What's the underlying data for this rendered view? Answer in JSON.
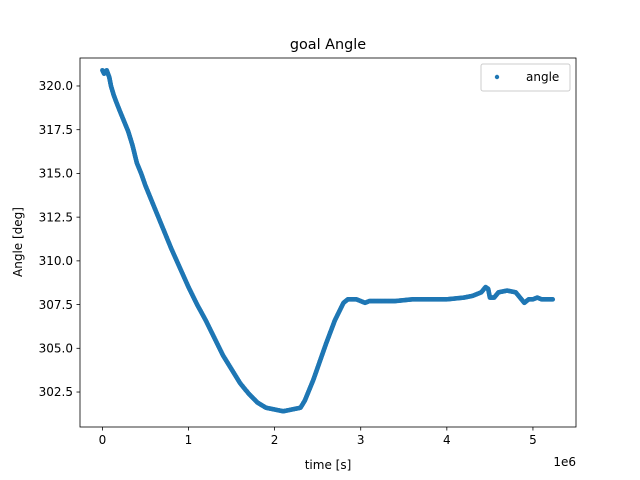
{
  "chart_data": {
    "type": "scatter",
    "title": "goal Angle",
    "xlabel": "time [s]",
    "ylabel": "Angle [deg]",
    "x_offset_text": "1e6",
    "xlim": [
      -0.26,
      5.5
    ],
    "ylim": [
      300.5,
      321.6
    ],
    "x_ticks": [
      0,
      1,
      2,
      3,
      4,
      5
    ],
    "x_tick_labels": [
      "0",
      "1",
      "2",
      "3",
      "4",
      "5"
    ],
    "y_ticks": [
      302.5,
      305.0,
      307.5,
      310.0,
      312.5,
      315.0,
      317.5,
      320.0
    ],
    "y_tick_labels": [
      "302.5",
      "305.0",
      "307.5",
      "310.0",
      "312.5",
      "315.0",
      "317.5",
      "320.0"
    ],
    "grid": false,
    "legend": {
      "position": "top-right",
      "entries": [
        "angle"
      ]
    },
    "series": [
      {
        "name": "angle",
        "color": "#1f77b4",
        "x": [
          0.0,
          0.02,
          0.05,
          0.08,
          0.1,
          0.13,
          0.16,
          0.2,
          0.25,
          0.3,
          0.35,
          0.4,
          0.45,
          0.5,
          0.55,
          0.6,
          0.7,
          0.8,
          0.9,
          1.0,
          1.1,
          1.2,
          1.3,
          1.4,
          1.5,
          1.6,
          1.7,
          1.8,
          1.9,
          2.0,
          2.1,
          2.2,
          2.3,
          2.35,
          2.4,
          2.45,
          2.5,
          2.55,
          2.6,
          2.7,
          2.8,
          2.85,
          2.9,
          2.95,
          3.0,
          3.05,
          3.1,
          3.2,
          3.4,
          3.6,
          3.8,
          4.0,
          4.2,
          4.3,
          4.4,
          4.45,
          4.48,
          4.5,
          4.55,
          4.6,
          4.7,
          4.8,
          4.85,
          4.9,
          4.95,
          5.0,
          5.05,
          5.1,
          5.15,
          5.2,
          5.23
        ],
        "y": [
          320.9,
          320.7,
          320.9,
          320.5,
          320.0,
          319.5,
          319.1,
          318.6,
          318.0,
          317.4,
          316.6,
          315.6,
          315.0,
          314.3,
          313.7,
          313.1,
          311.9,
          310.7,
          309.6,
          308.5,
          307.5,
          306.6,
          305.6,
          304.6,
          303.8,
          303.0,
          302.4,
          301.9,
          301.6,
          301.5,
          301.4,
          301.5,
          301.6,
          302.0,
          302.6,
          303.2,
          303.9,
          304.6,
          305.3,
          306.6,
          307.6,
          307.8,
          307.8,
          307.8,
          307.7,
          307.6,
          307.7,
          307.7,
          307.7,
          307.8,
          307.8,
          307.8,
          307.9,
          308.0,
          308.2,
          308.5,
          308.4,
          307.9,
          307.9,
          308.2,
          308.3,
          308.2,
          307.9,
          307.6,
          307.8,
          307.8,
          307.9,
          307.8,
          307.8,
          307.8,
          307.8
        ]
      }
    ]
  }
}
